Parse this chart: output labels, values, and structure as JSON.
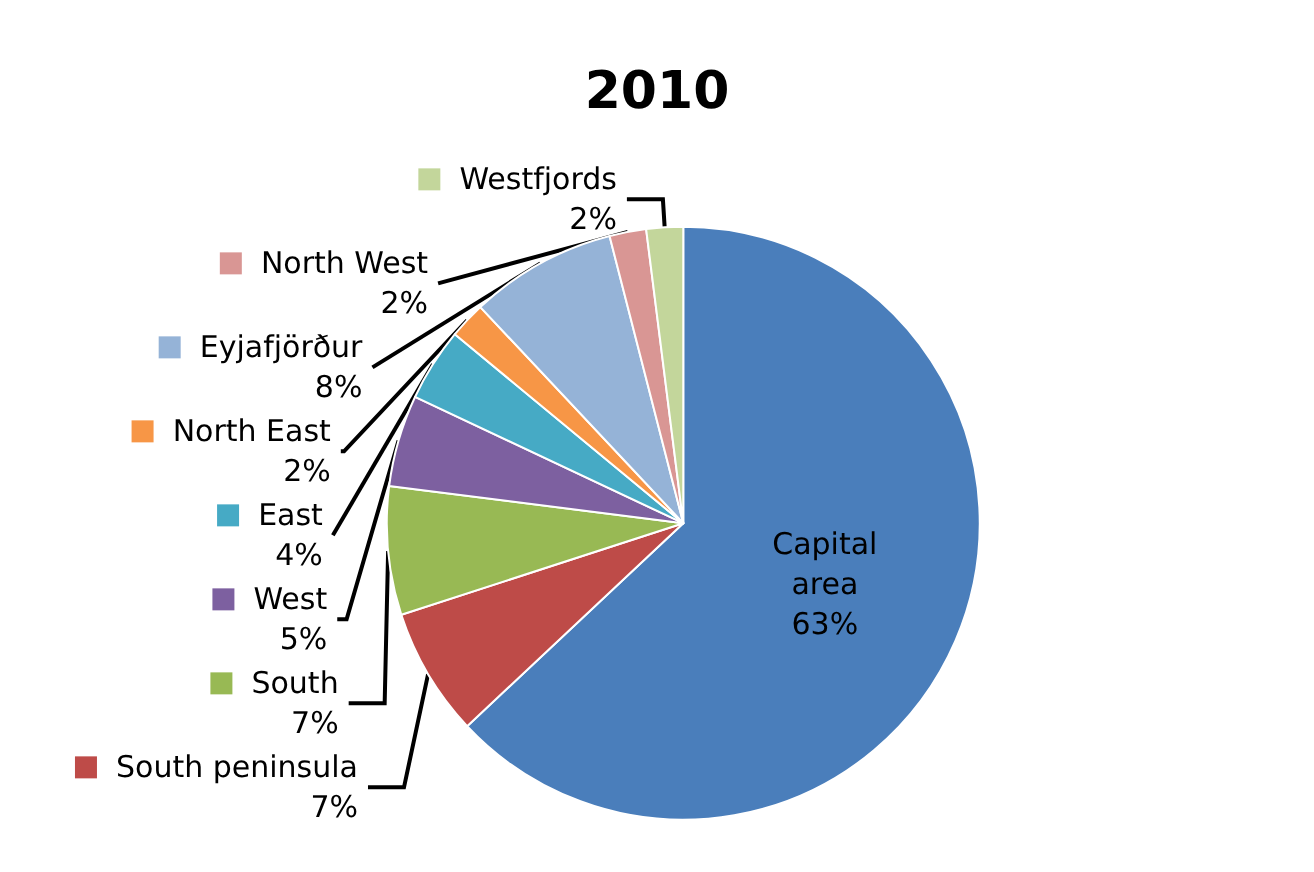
{
  "chart_data": {
    "type": "pie",
    "title": "2010",
    "categories": [
      "Capital area",
      "South peninsula",
      "South",
      "West",
      "East",
      "North East",
      "Eyjafjörður",
      "North West",
      "Westfjords"
    ],
    "values": [
      63,
      7,
      7,
      5,
      4,
      2,
      8,
      2,
      2
    ],
    "value_labels": [
      "63%",
      "7%",
      "7%",
      "5%",
      "4%",
      "2%",
      "8%",
      "2%",
      "2%"
    ],
    "colors": [
      "#4a7ebb",
      "#be4b48",
      "#98b954",
      "#7d60a0",
      "#46aac5",
      "#f79646",
      "#95b3d7",
      "#d99694",
      "#c3d69b"
    ],
    "legend": "left"
  }
}
